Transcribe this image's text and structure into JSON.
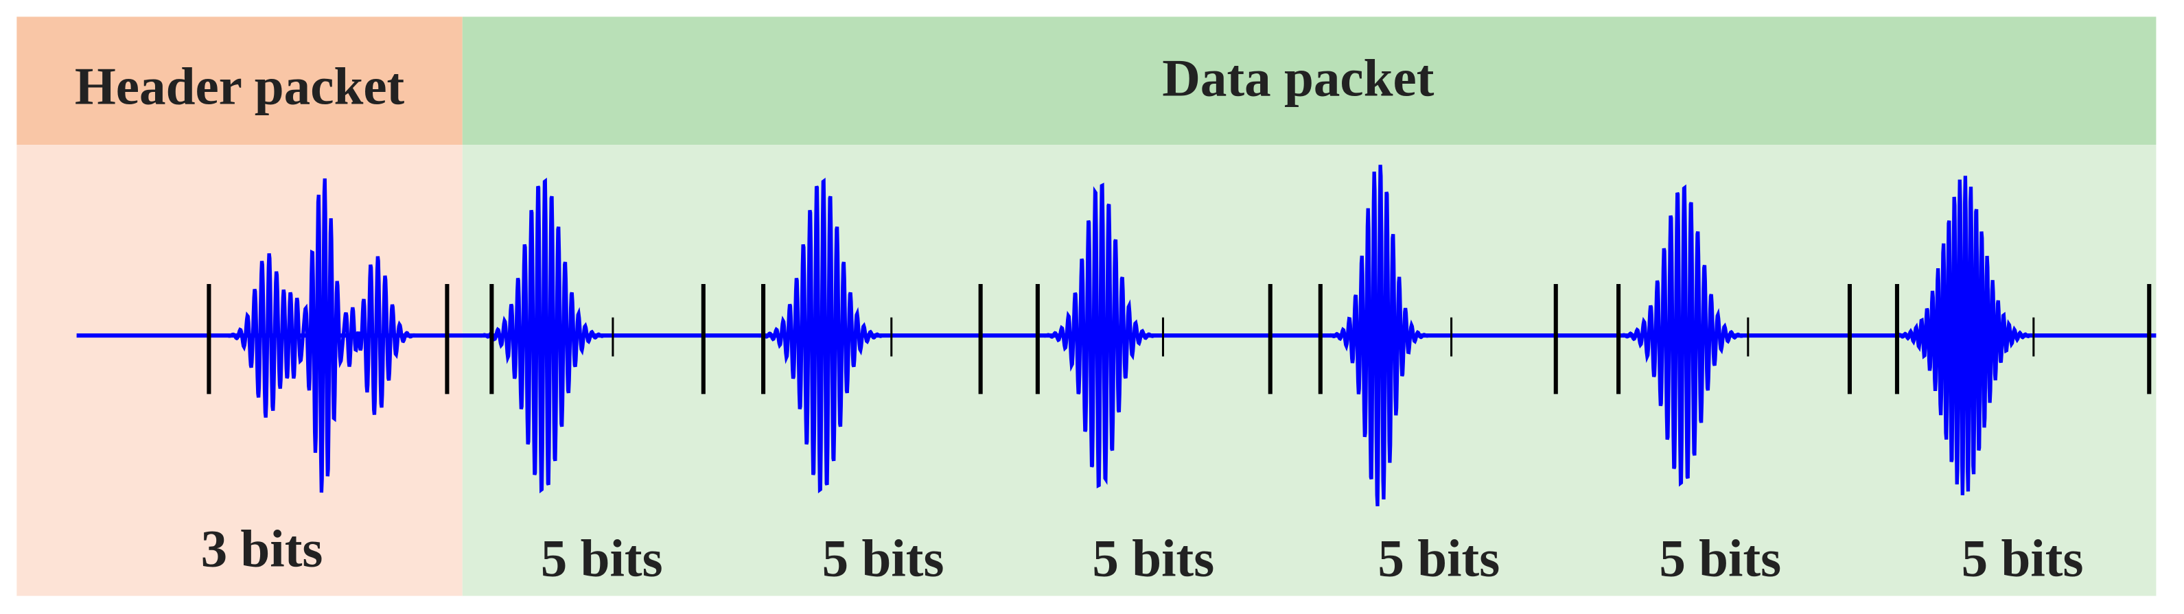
{
  "header_packet": {
    "title": "Header packet",
    "bits": "3 bits"
  },
  "data_packet": {
    "title": "Data packet",
    "segments": [
      "5 bits",
      "5 bits",
      "5 bits",
      "5 bits",
      "5 bits",
      "5 bits"
    ]
  }
}
